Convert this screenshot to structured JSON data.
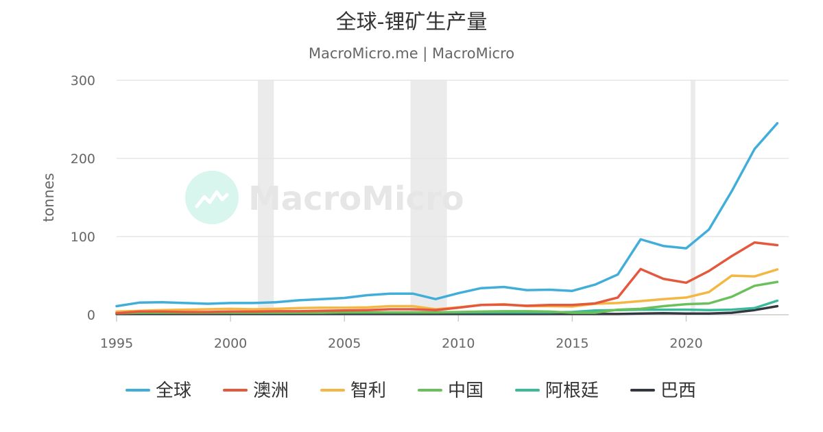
{
  "title": "全球-锂矿生产量",
  "subtitle": "MacroMicro.me | MacroMicro",
  "watermark": "MacroMicro",
  "colors": {
    "grid": "#e6e6e6",
    "axis": "#cccccc",
    "recession": "#ebebeb",
    "watermark_circle": "#d8f5ee"
  },
  "chart_data": {
    "type": "line",
    "ylabel": "tonnes",
    "xlim": [
      1995,
      2024.5
    ],
    "ylim": [
      0,
      300
    ],
    "x_ticks": [
      1995,
      2000,
      2005,
      2010,
      2015,
      2020
    ],
    "y_ticks": [
      0,
      100,
      200,
      300
    ],
    "grid": true,
    "legend_position": "bottom",
    "shaded_periods": [
      [
        2001.2,
        2001.9
      ],
      [
        2007.9,
        2009.5
      ],
      [
        2020.2,
        2020.4
      ]
    ],
    "x": [
      1995,
      1996,
      1997,
      1998,
      1999,
      2000,
      2001,
      2002,
      2003,
      2004,
      2005,
      2006,
      2007,
      2008,
      2009,
      2010,
      2011,
      2012,
      2013,
      2014,
      2015,
      2016,
      2017,
      2018,
      2019,
      2020,
      2021,
      2022,
      2023,
      2024
    ],
    "series": [
      {
        "name": "全球",
        "color": "#41aed9",
        "values": [
          11,
          15.5,
          16,
          15,
          14,
          15,
          15,
          16,
          18.5,
          20,
          21.5,
          25,
          27,
          27,
          20,
          27.5,
          34,
          35.5,
          31.5,
          32,
          30.5,
          38.5,
          51.5,
          96.5,
          88,
          85,
          109,
          158,
          212,
          245
        ]
      },
      {
        "name": "澳洲",
        "color": "#e4583e",
        "values": [
          2,
          4,
          4,
          3.5,
          3.5,
          4,
          4,
          4.5,
          4.5,
          5,
          5.5,
          6,
          7,
          7,
          6,
          9,
          12.5,
          13,
          11.5,
          12.5,
          12.5,
          14.5,
          22,
          58.5,
          46,
          41,
          56,
          75,
          92.5,
          89
        ]
      },
      {
        "name": "智利",
        "color": "#f4b743",
        "values": [
          4,
          5,
          6,
          6.5,
          7,
          7.5,
          7,
          7.5,
          8.5,
          9,
          9,
          9.5,
          11,
          11,
          7,
          9.5,
          12.5,
          13.5,
          11,
          11,
          10.5,
          14,
          15,
          17.5,
          20,
          22,
          29,
          50,
          49,
          58
        ]
      },
      {
        "name": "中国",
        "color": "#6cc05c",
        "values": [
          2,
          2.5,
          2.5,
          2.5,
          2.5,
          2.5,
          2.5,
          2.5,
          2.5,
          2.5,
          3,
          3,
          3,
          3,
          3,
          3.5,
          4,
          4.5,
          4.5,
          4,
          2.5,
          2.5,
          6.5,
          7.5,
          11,
          13.5,
          14.5,
          23,
          37,
          42
        ]
      },
      {
        "name": "阿根廷",
        "color": "#3bb99b",
        "values": [
          3,
          3,
          3,
          3,
          3,
          3,
          3,
          3,
          3,
          3,
          3,
          3,
          3,
          3,
          3,
          3,
          3,
          3,
          3,
          3,
          3.5,
          5.5,
          6,
          6.5,
          6.5,
          6.5,
          6,
          6.5,
          8.5,
          18
        ]
      },
      {
        "name": "巴西",
        "color": "#33373f",
        "values": [
          1,
          1,
          1,
          1,
          1,
          1,
          1,
          1,
          1,
          1,
          1,
          1,
          1,
          1,
          1,
          1,
          1,
          1,
          1,
          1,
          1,
          1,
          1,
          1.5,
          2,
          1.5,
          1.5,
          2.5,
          6,
          11
        ]
      }
    ]
  }
}
